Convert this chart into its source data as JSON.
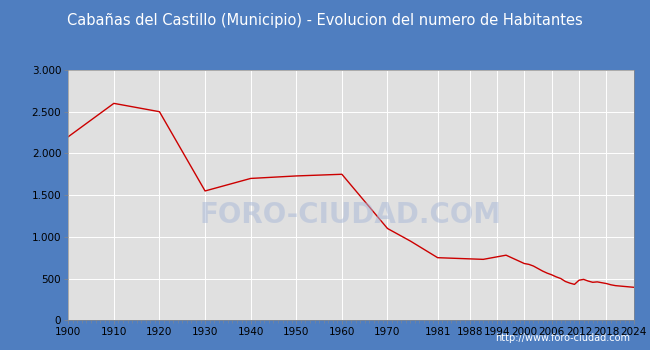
{
  "title": "Cabañas del Castillo (Municipio) - Evolucion del numero de Habitantes",
  "title_bg_color": "#4f7ec0",
  "title_text_color": "#ffffff",
  "plot_bg_color": "#e8e8e8",
  "chart_bg_color": "#ffffff",
  "line_color": "#cc0000",
  "footer_text": "http://www.foro-ciudad.com",
  "watermark": "FORO-CIUDAD.COM",
  "border_color": "#4f7ec0",
  "years": [
    1900,
    1910,
    1920,
    1930,
    1940,
    1950,
    1960,
    1970,
    1975,
    1981,
    1986,
    1991,
    1996,
    2000,
    2001,
    2002,
    2003,
    2004,
    2005,
    2006,
    2007,
    2008,
    2009,
    2010,
    2011,
    2012,
    2013,
    2014,
    2015,
    2016,
    2017,
    2018,
    2019,
    2020,
    2021,
    2022,
    2023,
    2024
  ],
  "population": [
    2200,
    2600,
    2500,
    1550,
    1700,
    1730,
    1750,
    1100,
    950,
    750,
    740,
    730,
    780,
    680,
    670,
    650,
    620,
    590,
    565,
    545,
    520,
    500,
    465,
    445,
    430,
    480,
    490,
    470,
    455,
    460,
    450,
    440,
    425,
    415,
    410,
    405,
    400,
    395
  ],
  "xtick_labels": [
    "1900",
    "1910",
    "1920",
    "1930",
    "1940",
    "1950",
    "1960",
    "1970",
    "1981",
    "1988",
    "1994",
    "2000",
    "2006",
    "2012",
    "2018",
    "2024"
  ],
  "xtick_positions": [
    1900,
    1910,
    1920,
    1930,
    1940,
    1950,
    1960,
    1970,
    1981,
    1988,
    1994,
    2000,
    2006,
    2012,
    2018,
    2024
  ],
  "ylim": [
    0,
    3000
  ],
  "ytick_values": [
    0,
    500,
    1000,
    1500,
    2000,
    2500,
    3000
  ],
  "ytick_labels": [
    "0",
    "500",
    "1.000",
    "1.500",
    "2.000",
    "2.500",
    "3.000"
  ]
}
